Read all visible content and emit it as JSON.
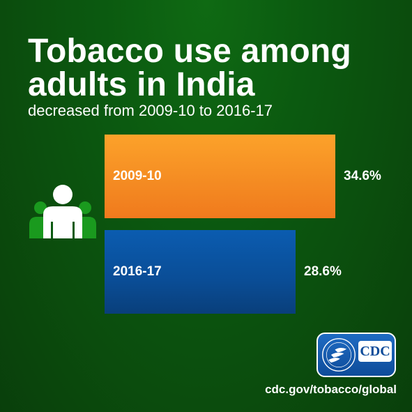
{
  "title": "Tobacco use among adults in India",
  "title_line1": "Tobacco use among",
  "title_line2": "adults in India",
  "subtitle": "decreased from 2009-10 to 2016-17",
  "logo": {
    "text": "CDC"
  },
  "url": "cdc.gov/tobacco/global",
  "colors": {
    "background": "#0b5a10",
    "bar_2009": "#f5901f",
    "bar_2016": "#0a4d96",
    "people_back": "#1a9a1e"
  },
  "icons": [
    "people-icon",
    "hhs-eagle-icon"
  ],
  "chart_data": {
    "type": "bar",
    "orientation": "horizontal",
    "categories": [
      "2009-10",
      "2016-17"
    ],
    "values": [
      34.6,
      28.6
    ],
    "value_labels": [
      "34.6%",
      "28.6%"
    ],
    "unit": "%",
    "title": "Tobacco use among adults in India",
    "subtitle": "decreased from 2009-10 to 2016-17",
    "grid": false,
    "legend": "none"
  }
}
